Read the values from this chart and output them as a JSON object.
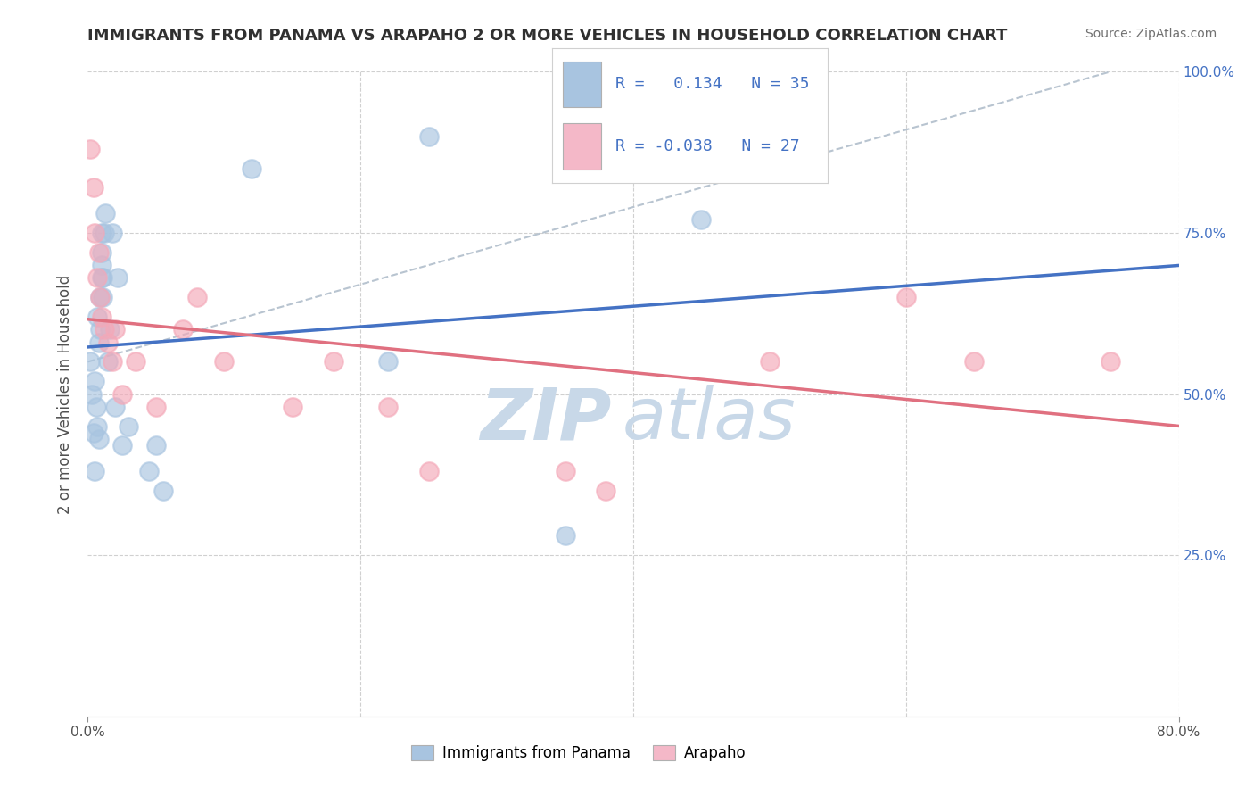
{
  "title": "IMMIGRANTS FROM PANAMA VS ARAPAHO 2 OR MORE VEHICLES IN HOUSEHOLD CORRELATION CHART",
  "source": "Source: ZipAtlas.com",
  "ylabel": "2 or more Vehicles in Household",
  "xlim": [
    0.0,
    80.0
  ],
  "ylim": [
    0.0,
    100.0
  ],
  "blue_R": 0.134,
  "blue_N": 35,
  "pink_R": -0.038,
  "pink_N": 27,
  "blue_color": "#a8c4e0",
  "pink_color": "#f4a8b8",
  "trend_line_blue_color": "#4472c4",
  "trend_line_pink_color": "#e07080",
  "trend_line_dash_color": "#b8c4d0",
  "watermark_zip": "ZIP",
  "watermark_atlas": "atlas",
  "watermark_color": "#c8d8e8",
  "legend_R_color": "#4472c4",
  "legend_box_blue": "#a8c4e0",
  "legend_box_pink": "#f4b8c8",
  "blue_x": [
    0.2,
    0.3,
    0.4,
    0.5,
    0.5,
    0.6,
    0.7,
    0.7,
    0.8,
    0.8,
    0.9,
    0.9,
    1.0,
    1.0,
    1.0,
    1.0,
    1.1,
    1.1,
    1.2,
    1.3,
    1.5,
    1.6,
    1.8,
    2.0,
    2.2,
    2.5,
    3.0,
    4.5,
    5.0,
    5.5,
    12.0,
    22.0,
    25.0,
    35.0,
    45.0
  ],
  "blue_y": [
    55.0,
    50.0,
    44.0,
    38.0,
    52.0,
    48.0,
    45.0,
    62.0,
    43.0,
    58.0,
    60.0,
    65.0,
    68.0,
    70.0,
    72.0,
    75.0,
    65.0,
    68.0,
    75.0,
    78.0,
    55.0,
    60.0,
    75.0,
    48.0,
    68.0,
    42.0,
    45.0,
    38.0,
    42.0,
    35.0,
    85.0,
    55.0,
    90.0,
    28.0,
    77.0
  ],
  "pink_x": [
    0.2,
    0.4,
    0.5,
    0.7,
    0.8,
    0.9,
    1.0,
    1.2,
    1.5,
    1.8,
    2.0,
    2.5,
    3.5,
    5.0,
    7.0,
    8.0,
    10.0,
    15.0,
    18.0,
    22.0,
    25.0,
    35.0,
    38.0,
    50.0,
    60.0,
    65.0,
    75.0
  ],
  "pink_y": [
    88.0,
    82.0,
    75.0,
    68.0,
    72.0,
    65.0,
    62.0,
    60.0,
    58.0,
    55.0,
    60.0,
    50.0,
    55.0,
    48.0,
    60.0,
    65.0,
    55.0,
    48.0,
    55.0,
    48.0,
    38.0,
    38.0,
    35.0,
    55.0,
    65.0,
    55.0,
    55.0
  ],
  "dash_x0": 0.0,
  "dash_y0": 55.0,
  "dash_x1": 75.0,
  "dash_y1": 100.0
}
